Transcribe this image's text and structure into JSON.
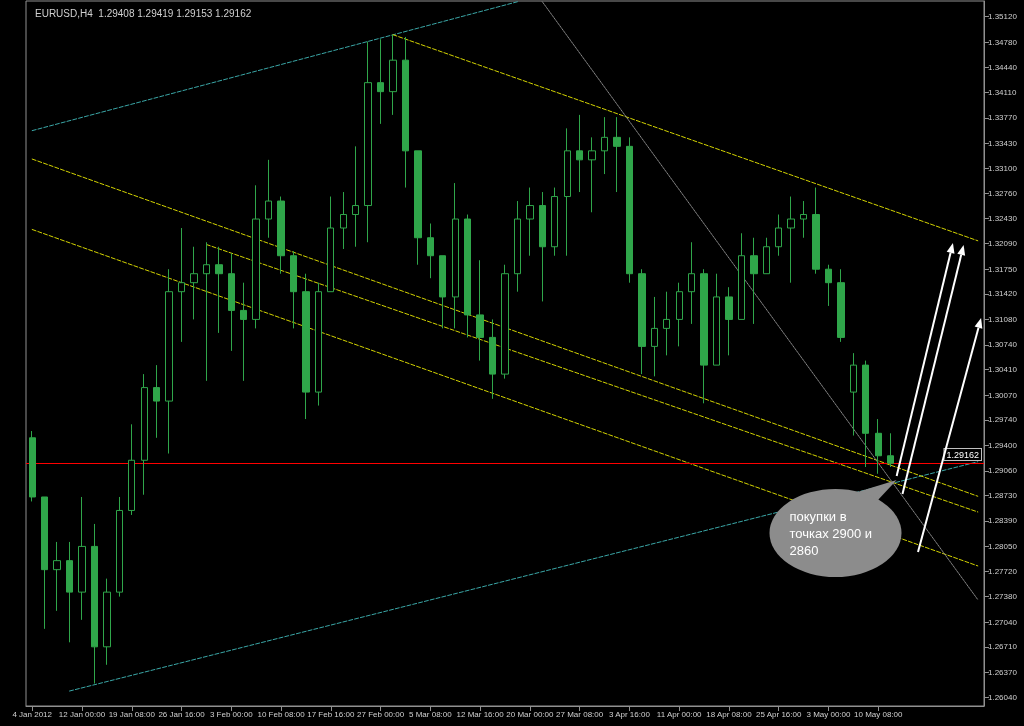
{
  "chart_data": {
    "type": "candlestick",
    "title": "EURUSD,H4  1.29408 1.29419 1.29153 1.29162",
    "categories": [
      "4 Jan 2012",
      null,
      null,
      null,
      "12 Jan 00:00",
      null,
      null,
      null,
      "19 Jan 08:00",
      null,
      null,
      null,
      "26 Jan 16:00",
      null,
      null,
      null,
      "3 Feb 00:00",
      null,
      null,
      null,
      "10 Feb 08:00",
      null,
      null,
      null,
      "17 Feb 16:00",
      null,
      null,
      null,
      "27 Feb 00:00",
      null,
      null,
      null,
      "5 Mar 08:00",
      null,
      null,
      null,
      "12 Mar 16:00",
      null,
      null,
      null,
      "20 Mar 00:00",
      null,
      null,
      null,
      "27 Mar 08:00",
      null,
      null,
      null,
      "3 Apr 16:00",
      null,
      null,
      null,
      "11 Apr 00:00",
      null,
      null,
      null,
      "18 Apr 08:00",
      null,
      null,
      null,
      "25 Apr 16:00",
      null,
      null,
      null,
      "3 May 00:00",
      null,
      null,
      null,
      "10 May 08:00",
      null,
      null,
      null,
      null,
      null,
      null,
      null,
      null
    ],
    "ylim": [
      1.2592,
      1.3533
    ],
    "yticks": [
      {
        "value": 1.3512,
        "label": "1.35120"
      },
      {
        "value": 1.3478,
        "label": "1.34780"
      },
      {
        "value": 1.3444,
        "label": "1.34440"
      },
      {
        "value": 1.3411,
        "label": "1.34110"
      },
      {
        "value": 1.3377,
        "label": "1.33770"
      },
      {
        "value": 1.3343,
        "label": "1.33430"
      },
      {
        "value": 1.331,
        "label": "1.33100"
      },
      {
        "value": 1.3276,
        "label": "1.32760"
      },
      {
        "value": 1.3243,
        "label": "1.32430"
      },
      {
        "value": 1.3209,
        "label": "1.32090"
      },
      {
        "value": 1.3175,
        "label": "1.31750"
      },
      {
        "value": 1.3142,
        "label": "1.31420"
      },
      {
        "value": 1.3108,
        "label": "1.31080"
      },
      {
        "value": 1.3074,
        "label": "1.30740"
      },
      {
        "value": 1.3041,
        "label": "1.30410"
      },
      {
        "value": 1.3007,
        "label": "1.30070"
      },
      {
        "value": 1.2974,
        "label": "1.29740"
      },
      {
        "value": 1.294,
        "label": "1.29400"
      },
      {
        "value": 1.2906,
        "label": "1.29060"
      },
      {
        "value": 1.2873,
        "label": "1.28730"
      },
      {
        "value": 1.2839,
        "label": "1.28390"
      },
      {
        "value": 1.2805,
        "label": "1.28050"
      },
      {
        "value": 1.2772,
        "label": "1.27720"
      },
      {
        "value": 1.2738,
        "label": "1.27380"
      },
      {
        "value": 1.2704,
        "label": "1.27040"
      },
      {
        "value": 1.2671,
        "label": "1.26710"
      },
      {
        "value": 1.2637,
        "label": "1.26370"
      },
      {
        "value": 1.2604,
        "label": "1.26040"
      }
    ],
    "marker": "none",
    "series": [
      {
        "type": "line",
        "color": "#3aa6a6",
        "line_style": "dashed",
        "values": [
          1.336,
          null,
          null,
          null,
          null,
          null,
          null,
          null,
          null,
          null,
          null,
          null,
          null,
          null,
          null,
          null,
          null,
          null,
          null,
          null,
          null,
          null,
          null,
          null,
          null,
          null,
          null,
          null,
          null,
          null,
          null,
          null,
          null,
          null,
          null,
          null,
          null,
          null,
          null,
          1.3532,
          null,
          null,
          null,
          null,
          null,
          null,
          null,
          null,
          null,
          null,
          null,
          null,
          null,
          null,
          null,
          null,
          null,
          null,
          null,
          null,
          null,
          null,
          null,
          null,
          null,
          null,
          null,
          null,
          null,
          null,
          null,
          null,
          null,
          null,
          null,
          null,
          null
        ]
      },
      {
        "type": "line",
        "color": "#3aa6a6",
        "line_style": "dashed",
        "values": [
          null,
          null,
          null,
          1.2612,
          null,
          null,
          null,
          null,
          null,
          null,
          null,
          null,
          null,
          null,
          null,
          null,
          null,
          null,
          null,
          null,
          null,
          null,
          null,
          null,
          null,
          null,
          null,
          null,
          null,
          null,
          null,
          null,
          null,
          null,
          null,
          null,
          null,
          null,
          null,
          null,
          null,
          null,
          null,
          null,
          null,
          null,
          null,
          null,
          null,
          null,
          null,
          null,
          null,
          null,
          null,
          null,
          null,
          null,
          null,
          null,
          null,
          null,
          null,
          null,
          null,
          null,
          null,
          null,
          null,
          null,
          null,
          null,
          null,
          null,
          null,
          null,
          1.2918
        ]
      },
      {
        "type": "line",
        "color": "#d2d200",
        "line_style": "dashed",
        "values": [
          null,
          null,
          null,
          null,
          null,
          null,
          null,
          null,
          null,
          null,
          null,
          null,
          null,
          null,
          null,
          null,
          null,
          null,
          null,
          null,
          null,
          null,
          null,
          null,
          null,
          null,
          null,
          null,
          null,
          1.3488,
          null,
          null,
          null,
          null,
          null,
          null,
          null,
          null,
          null,
          null,
          null,
          null,
          null,
          null,
          null,
          null,
          null,
          null,
          null,
          null,
          null,
          null,
          null,
          null,
          null,
          null,
          null,
          null,
          null,
          null,
          null,
          null,
          null,
          null,
          null,
          null,
          null,
          null,
          null,
          null,
          null,
          null,
          null,
          null,
          null,
          null,
          1.3213
        ]
      },
      {
        "type": "line",
        "color": "#d2d200",
        "line_style": "dashed",
        "values": [
          1.3322,
          null,
          null,
          null,
          null,
          null,
          null,
          null,
          null,
          null,
          null,
          null,
          null,
          null,
          null,
          null,
          null,
          null,
          null,
          null,
          null,
          null,
          null,
          null,
          null,
          null,
          null,
          null,
          null,
          null,
          null,
          null,
          null,
          null,
          null,
          null,
          null,
          null,
          null,
          null,
          null,
          null,
          null,
          null,
          null,
          null,
          null,
          null,
          null,
          null,
          null,
          null,
          null,
          null,
          null,
          null,
          null,
          null,
          null,
          null,
          null,
          null,
          null,
          null,
          null,
          null,
          null,
          null,
          null,
          null,
          null,
          null,
          null,
          null,
          null,
          null,
          1.2872
        ]
      },
      {
        "type": "line",
        "color": "#d2d200",
        "line_style": "dashed",
        "values": [
          null,
          null,
          null,
          null,
          null,
          null,
          null,
          null,
          null,
          null,
          null,
          null,
          null,
          null,
          1.3208,
          null,
          null,
          null,
          null,
          null,
          null,
          null,
          null,
          null,
          null,
          null,
          null,
          null,
          null,
          null,
          null,
          null,
          null,
          null,
          null,
          null,
          null,
          null,
          null,
          null,
          null,
          null,
          null,
          null,
          null,
          null,
          null,
          null,
          null,
          null,
          null,
          null,
          null,
          null,
          null,
          null,
          null,
          null,
          null,
          null,
          null,
          null,
          null,
          null,
          null,
          null,
          null,
          null,
          null,
          null,
          null,
          null,
          null,
          null,
          null,
          null,
          1.2851
        ]
      },
      {
        "type": "line",
        "color": "#d2d200",
        "line_style": "dashed",
        "values": [
          1.3228,
          null,
          null,
          null,
          null,
          null,
          null,
          null,
          null,
          null,
          null,
          null,
          null,
          null,
          null,
          null,
          null,
          null,
          null,
          null,
          null,
          null,
          null,
          null,
          null,
          null,
          null,
          null,
          null,
          null,
          null,
          null,
          null,
          null,
          null,
          null,
          null,
          null,
          null,
          null,
          null,
          null,
          null,
          null,
          null,
          null,
          null,
          null,
          null,
          null,
          null,
          null,
          null,
          null,
          null,
          null,
          null,
          null,
          null,
          null,
          null,
          null,
          null,
          null,
          null,
          null,
          null,
          null,
          null,
          null,
          null,
          null,
          null,
          null,
          null,
          null,
          1.2779
        ]
      },
      {
        "type": "line",
        "color": "#8a8a8a",
        "line_style": "dotted",
        "values": [
          null,
          null,
          null,
          null,
          null,
          null,
          null,
          null,
          null,
          null,
          null,
          null,
          null,
          null,
          null,
          null,
          null,
          null,
          null,
          null,
          null,
          null,
          null,
          null,
          null,
          null,
          null,
          null,
          null,
          null,
          null,
          null,
          null,
          null,
          null,
          null,
          null,
          null,
          null,
          null,
          null,
          1.3532,
          null,
          null,
          null,
          null,
          null,
          null,
          null,
          null,
          null,
          null,
          null,
          null,
          null,
          null,
          null,
          null,
          null,
          null,
          null,
          null,
          null,
          null,
          null,
          null,
          null,
          null,
          null,
          null,
          null,
          null,
          null,
          null,
          null,
          null,
          1.2734
        ]
      },
      {
        "color": "#2fa64a",
        "ohlc": [
          [
            1.295,
            1.2959,
            1.2865,
            1.2871
          ],
          [
            1.2871,
            1.2871,
            1.2695,
            1.2774
          ],
          [
            1.2774,
            1.2811,
            1.2719,
            1.2786
          ],
          [
            1.2786,
            1.2811,
            1.2677,
            1.2744
          ],
          [
            1.2744,
            1.2871,
            1.2707,
            1.2805
          ],
          [
            1.2805,
            1.2835,
            1.2622,
            1.2671
          ],
          [
            1.2671,
            1.2762,
            1.2647,
            1.2744
          ],
          [
            1.2744,
            1.2871,
            1.2738,
            1.2853
          ],
          [
            1.2853,
            1.2968,
            1.2847,
            1.292
          ],
          [
            1.292,
            1.3035,
            1.2874,
            1.3017
          ],
          [
            1.3017,
            1.3047,
            1.295,
            1.2999
          ],
          [
            1.2999,
            1.3175,
            1.2929,
            1.3145
          ],
          [
            1.3145,
            1.323,
            1.3078,
            1.3157
          ],
          [
            1.3157,
            1.3205,
            1.3108,
            1.3169
          ],
          [
            1.3169,
            1.3211,
            1.3026,
            1.3181
          ],
          [
            1.3181,
            1.3205,
            1.309,
            1.3169
          ],
          [
            1.3169,
            1.3196,
            1.3066,
            1.312
          ],
          [
            1.312,
            1.3157,
            1.3026,
            1.3108
          ],
          [
            1.3108,
            1.3287,
            1.3096,
            1.3242
          ],
          [
            1.3242,
            1.3321,
            1.3217,
            1.3266
          ],
          [
            1.3266,
            1.3272,
            1.3169,
            1.3193
          ],
          [
            1.3193,
            1.3199,
            1.3096,
            1.3145
          ],
          [
            1.3145,
            1.3169,
            1.2975,
            1.3011
          ],
          [
            1.3011,
            1.3157,
            1.2993,
            1.3145
          ],
          [
            1.3145,
            1.3272,
            1.3145,
            1.323
          ],
          [
            1.323,
            1.3278,
            1.3202,
            1.3248
          ],
          [
            1.3248,
            1.3339,
            1.3205,
            1.326
          ],
          [
            1.326,
            1.3479,
            1.3211,
            1.3424
          ],
          [
            1.3424,
            1.3482,
            1.3369,
            1.3412
          ],
          [
            1.3412,
            1.3488,
            1.3381,
            1.3454
          ],
          [
            1.3454,
            1.3485,
            1.3284,
            1.3333
          ],
          [
            1.3333,
            1.3333,
            1.3181,
            1.3217
          ],
          [
            1.3217,
            1.3236,
            1.3163,
            1.3193
          ],
          [
            1.3193,
            1.3193,
            1.3096,
            1.3138
          ],
          [
            1.3138,
            1.329,
            1.3096,
            1.3242
          ],
          [
            1.3242,
            1.3248,
            1.3084,
            1.3114
          ],
          [
            1.3114,
            1.3187,
            1.3053,
            1.3084
          ],
          [
            1.3084,
            1.3108,
            1.3002,
            1.3035
          ],
          [
            1.3035,
            1.3181,
            1.3029,
            1.3169
          ],
          [
            1.3169,
            1.3266,
            1.3145,
            1.3242
          ],
          [
            1.3242,
            1.3284,
            1.3193,
            1.326
          ],
          [
            1.326,
            1.3278,
            1.3132,
            1.3205
          ],
          [
            1.3205,
            1.3284,
            1.3193,
            1.3272
          ],
          [
            1.3272,
            1.3363,
            1.3193,
            1.3333
          ],
          [
            1.3333,
            1.3381,
            1.3278,
            1.3321
          ],
          [
            1.3321,
            1.3351,
            1.3251,
            1.3333
          ],
          [
            1.3333,
            1.3378,
            1.3302,
            1.3351
          ],
          [
            1.3351,
            1.3378,
            1.3278,
            1.3339
          ],
          [
            1.3339,
            1.3351,
            1.3157,
            1.3169
          ],
          [
            1.3169,
            1.3175,
            1.3035,
            1.3072
          ],
          [
            1.3072,
            1.3138,
            1.3032,
            1.3096
          ],
          [
            1.3096,
            1.3145,
            1.306,
            1.3108
          ],
          [
            1.3108,
            1.3157,
            1.3072,
            1.3145
          ],
          [
            1.3145,
            1.3211,
            1.3102,
            1.3169
          ],
          [
            1.3169,
            1.3175,
            1.2996,
            1.3047
          ],
          [
            1.3047,
            1.3169,
            1.3047,
            1.3138
          ],
          [
            1.3138,
            1.3151,
            1.306,
            1.3108
          ],
          [
            1.3108,
            1.3223,
            1.3108,
            1.3193
          ],
          [
            1.3193,
            1.3217,
            1.3102,
            1.3169
          ],
          [
            1.3169,
            1.3217,
            1.3169,
            1.3205
          ],
          [
            1.3205,
            1.3248,
            1.3193,
            1.323
          ],
          [
            1.323,
            1.3272,
            1.3157,
            1.3242
          ],
          [
            1.3242,
            1.3266,
            1.3217,
            1.3248
          ],
          [
            1.3248,
            1.3284,
            1.3169,
            1.3175
          ],
          [
            1.3175,
            1.3181,
            1.3126,
            1.3157
          ],
          [
            1.3157,
            1.3175,
            1.3078,
            1.3084
          ],
          [
            1.3011,
            1.3063,
            1.2953,
            1.3047
          ],
          [
            1.3047,
            1.3053,
            1.2911,
            1.2956
          ],
          [
            1.2956,
            1.2975,
            1.2902,
            1.2926
          ],
          [
            1.2926,
            1.2956,
            1.2911,
            1.2916
          ],
          null,
          null,
          null,
          null,
          null,
          null,
          null
        ]
      }
    ],
    "ref_lines": [
      {
        "axis": "y",
        "value": 1.29162,
        "label": "1.29162",
        "color": "#ff0000"
      }
    ],
    "annotations": [
      "покупки в точках 2900 и 2860"
    ]
  }
}
